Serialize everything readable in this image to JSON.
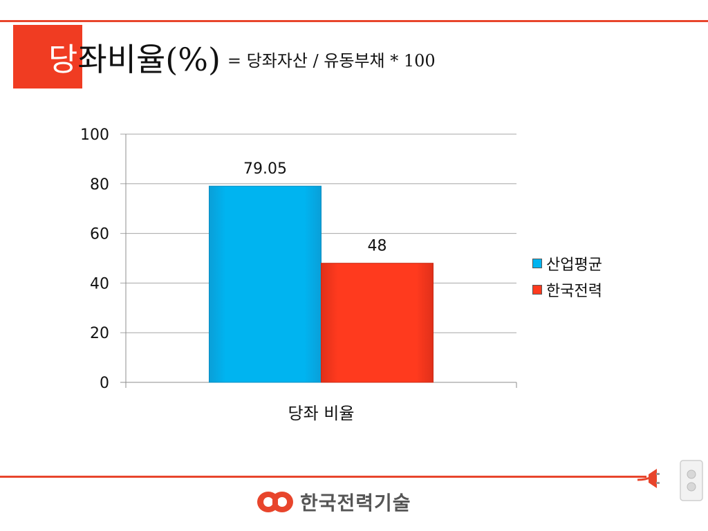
{
  "title": {
    "first_char": "당",
    "rest": "좌비율(%)",
    "formula": "= 당좌자산 / 유동부채 * 100"
  },
  "footer": {
    "logo_text": "한국전력기술"
  },
  "colors": {
    "accent": "#e8452c",
    "series1": "#00b4f0",
    "series2": "#ff3a1e",
    "grid": "#a6a6a6"
  },
  "chart_data": {
    "type": "bar",
    "categories": [
      "당좌 비율"
    ],
    "series": [
      {
        "name": "산업평균",
        "values": [
          79.05
        ],
        "label": "79.05"
      },
      {
        "name": "한국전력",
        "values": [
          48
        ],
        "label": "48"
      }
    ],
    "ylim": [
      0,
      100
    ],
    "yticks": [
      "0",
      "20",
      "40",
      "60",
      "80",
      "100"
    ],
    "xlabel": "",
    "ylabel": "",
    "grid": true,
    "legend": "right"
  }
}
